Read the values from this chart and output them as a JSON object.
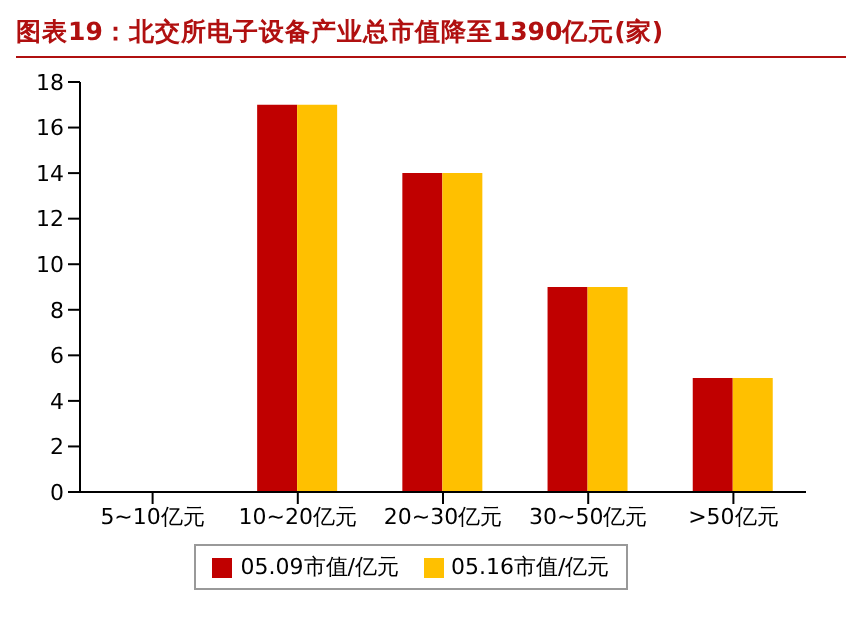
{
  "chart_data": {
    "type": "bar",
    "title": "图表19：北交所电子设备产业总市值降至1390亿元(家)",
    "categories": [
      "5~10亿元",
      "10~20亿元",
      "20~30亿元",
      "30~50亿元",
      ">50亿元"
    ],
    "series": [
      {
        "name": "05.09市值/亿元",
        "color": "#c00000",
        "values": [
          0,
          17,
          14,
          9,
          5
        ]
      },
      {
        "name": "05.16市值/亿元",
        "color": "#ffc000",
        "values": [
          0,
          17,
          14,
          9,
          5
        ]
      }
    ],
    "ylim": [
      0,
      18
    ],
    "yticks": [
      0,
      2,
      4,
      6,
      8,
      10,
      12,
      14,
      16,
      18
    ],
    "grid": false,
    "legend": "bottom"
  }
}
